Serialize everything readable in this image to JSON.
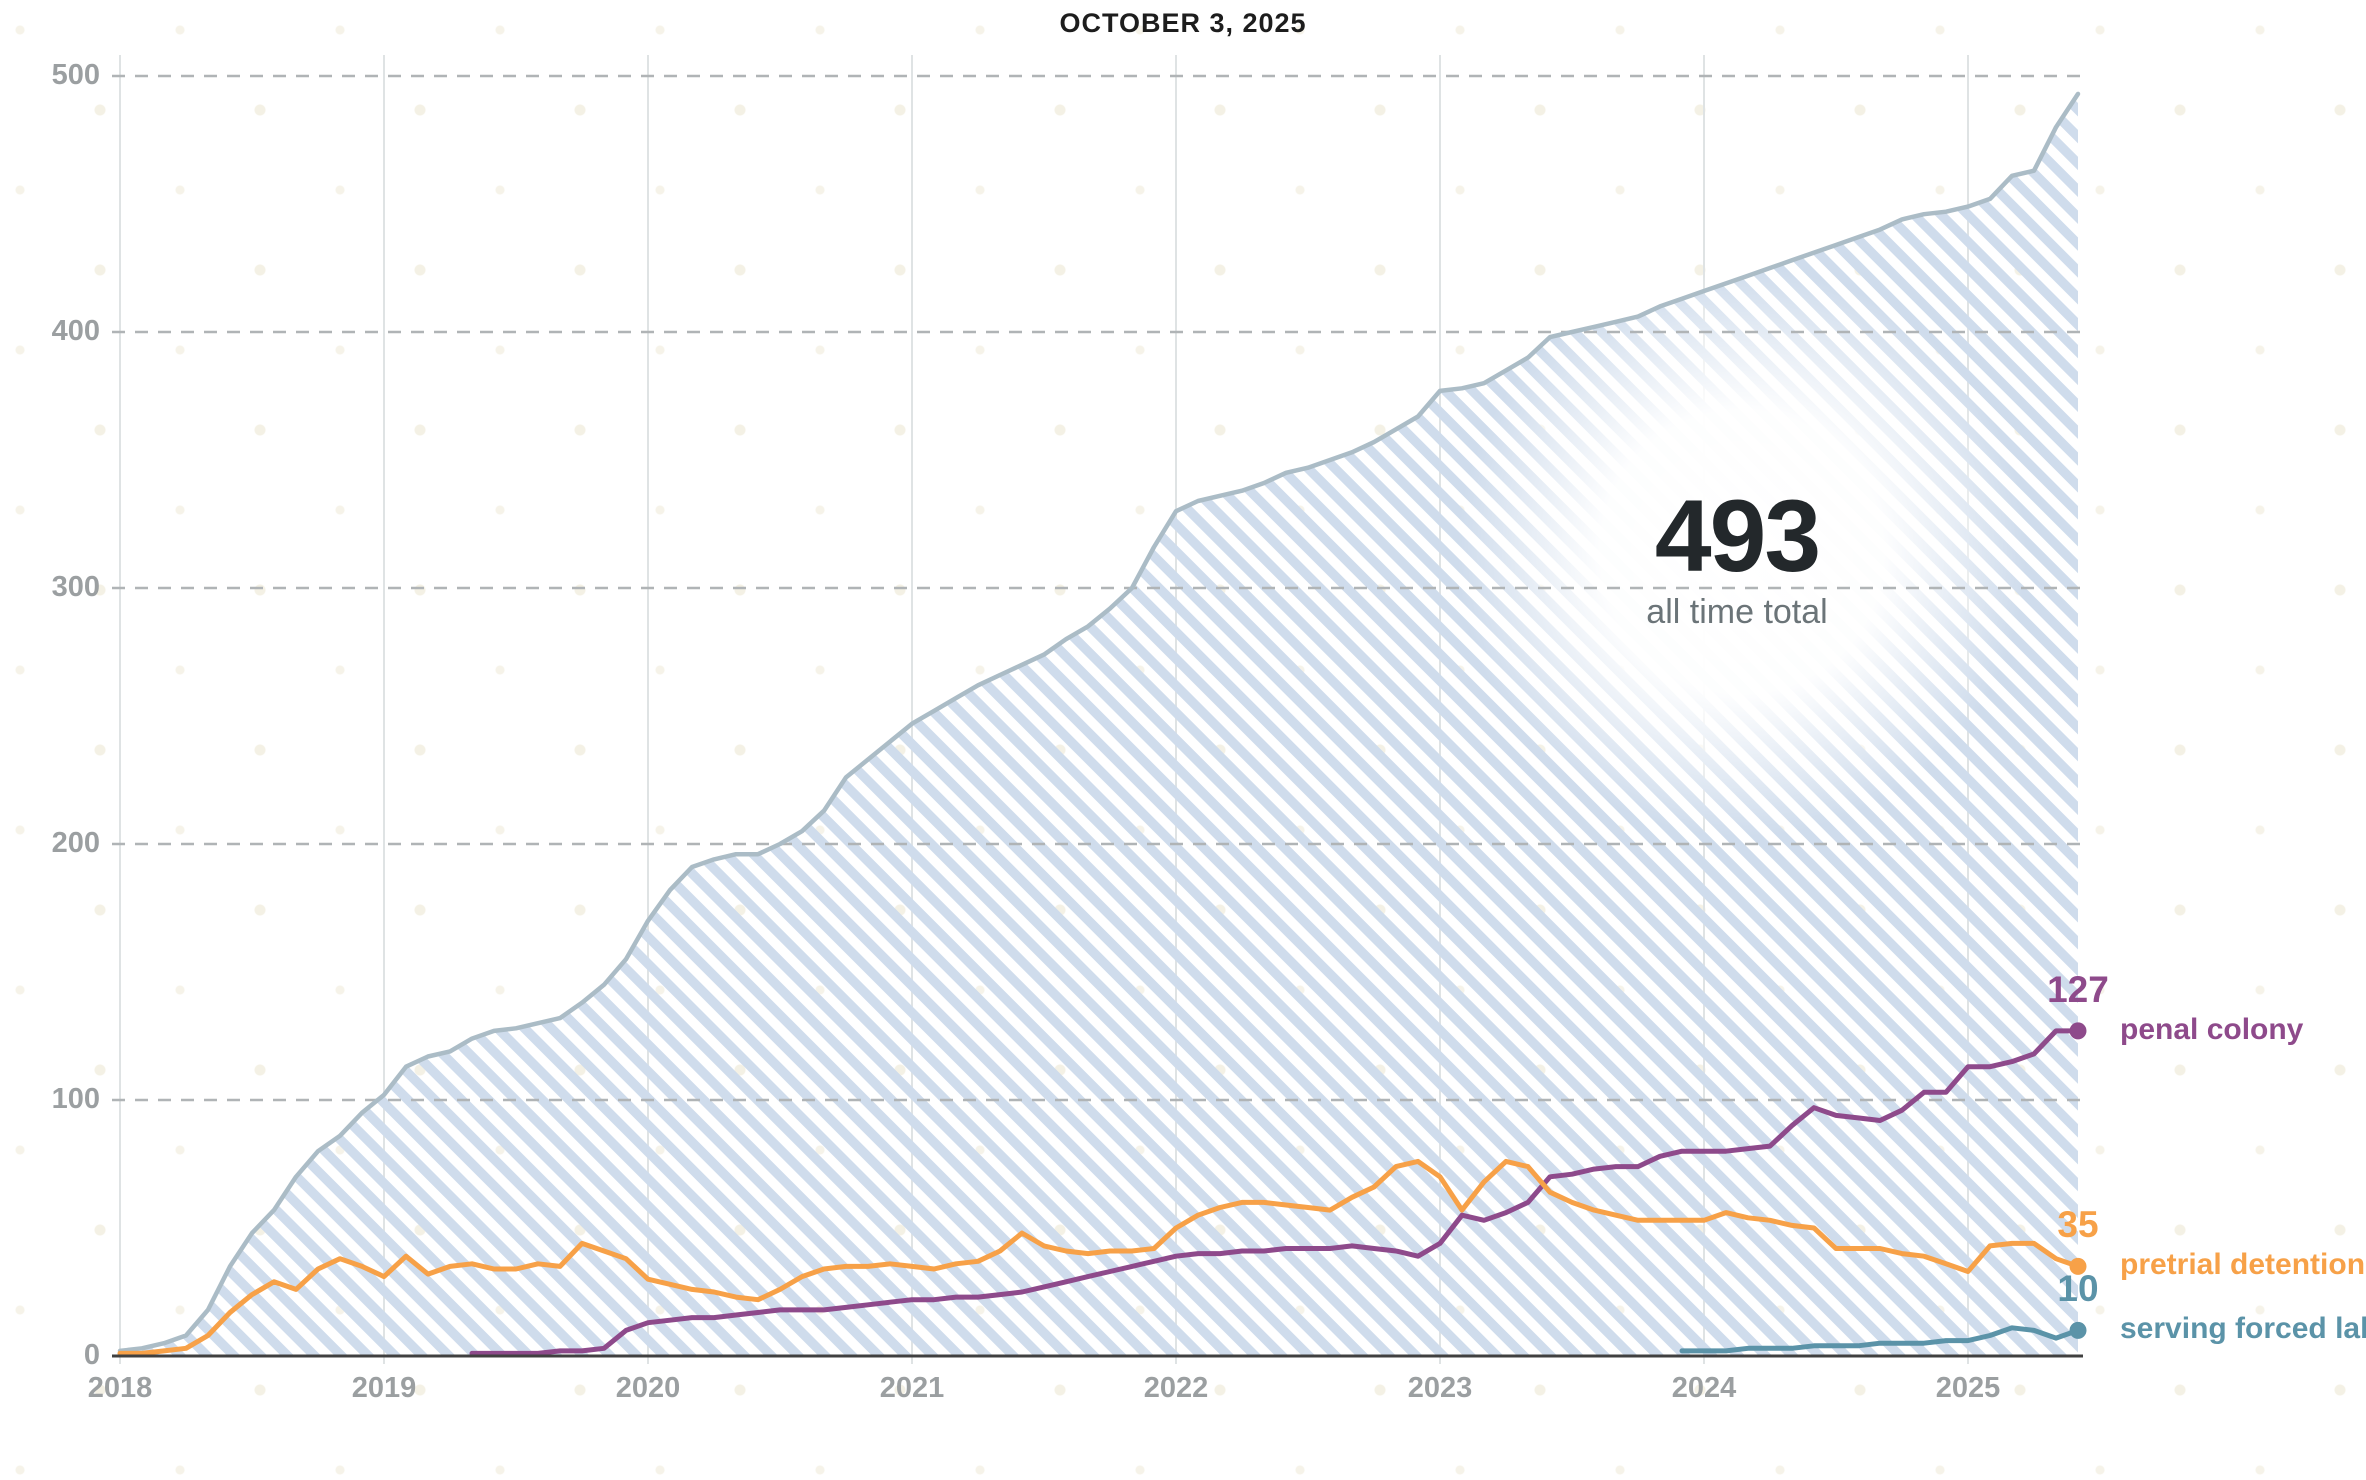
{
  "header": {
    "title": "OCTOBER 3, 2025"
  },
  "summary": {
    "total_value": "493",
    "total_label": "all time total"
  },
  "colors": {
    "area_fill_stripe": "#cfdcec",
    "area_stroke": "#abbcc6",
    "penal_colony": "#8e4a8b",
    "pretrial_detention": "#f7a148",
    "serving_forced_labor": "#5b93a8",
    "gridline_dashed": "#b0b4b6",
    "gridline_vertical": "#dfe3e4",
    "axis_baseline": "#404040",
    "tick_text": "#9b9fa1",
    "title_text": "#1d1d1d",
    "big_number_text": "#23282b",
    "big_label_text": "#6b7478"
  },
  "chart_data": {
    "type": "area",
    "title": "OCTOBER 3, 2025",
    "xlabel": "",
    "ylabel": "",
    "x_axis": {
      "tick_years": [
        2018,
        2019,
        2020,
        2021,
        2022,
        2023,
        2024,
        2025
      ]
    },
    "y_axis": {
      "ticks": [
        0,
        100,
        200,
        300,
        400,
        500
      ],
      "range": [
        0,
        500
      ],
      "grid": "dashed"
    },
    "legend_position": "right-of-line-endpoints",
    "sampling": "monthly, value = decimal year = start + index/12",
    "annotation": {
      "value": "493",
      "label": "all time total"
    },
    "series": [
      {
        "name": "all time total",
        "style": "hatched-area",
        "color": "#abbcc6",
        "end_label": "493",
        "start": 2018.0,
        "values": [
          2,
          3,
          5,
          8,
          18,
          35,
          48,
          57,
          70,
          80,
          86,
          95,
          102,
          113,
          117,
          119,
          124,
          127,
          128,
          130,
          132,
          138,
          145,
          155,
          170,
          182,
          191,
          194,
          196,
          196,
          200,
          205,
          213,
          226,
          233,
          240,
          247,
          252,
          257,
          262,
          266,
          270,
          274,
          280,
          285,
          292,
          300,
          316,
          330,
          334,
          336,
          338,
          341,
          345,
          347,
          350,
          353,
          357,
          362,
          367,
          377,
          378,
          380,
          385,
          390,
          398,
          400,
          402,
          404,
          406,
          410,
          413,
          416,
          419,
          422,
          425,
          428,
          431,
          434,
          437,
          440,
          444,
          446,
          447,
          449,
          452,
          461,
          463,
          480,
          493
        ]
      },
      {
        "name": "penal colony",
        "style": "line",
        "color": "#8e4a8b",
        "end_label": "127",
        "start": 2019.3333,
        "values": [
          1,
          1,
          1,
          1,
          2,
          2,
          3,
          10,
          13,
          14,
          15,
          15,
          16,
          17,
          18,
          18,
          18,
          19,
          20,
          21,
          22,
          22,
          23,
          23,
          24,
          25,
          27,
          29,
          31,
          33,
          35,
          37,
          39,
          40,
          40,
          41,
          41,
          42,
          42,
          42,
          43,
          42,
          41,
          39,
          44,
          55,
          53,
          56,
          60,
          70,
          71,
          73,
          74,
          74,
          78,
          80,
          80,
          80,
          81,
          82,
          90,
          97,
          94,
          93,
          92,
          96,
          103,
          103,
          113,
          113,
          115,
          118,
          127,
          127
        ]
      },
      {
        "name": "pretrial detention",
        "style": "line",
        "color": "#f7a148",
        "end_label": "35",
        "start": 2018.0,
        "values": [
          1,
          1,
          2,
          3,
          8,
          17,
          24,
          29,
          26,
          34,
          38,
          35,
          31,
          39,
          32,
          35,
          36,
          34,
          34,
          36,
          35,
          44,
          41,
          38,
          30,
          28,
          26,
          25,
          23,
          22,
          26,
          31,
          34,
          35,
          35,
          36,
          35,
          34,
          36,
          37,
          41,
          48,
          43,
          41,
          40,
          41,
          41,
          42,
          50,
          55,
          58,
          60,
          60,
          59,
          58,
          57,
          62,
          66,
          74,
          76,
          70,
          57,
          68,
          76,
          74,
          64,
          60,
          57,
          55,
          53,
          53,
          53,
          53,
          56,
          54,
          53,
          51,
          50,
          42,
          42,
          42,
          40,
          39,
          36,
          33,
          43,
          44,
          44,
          38,
          35
        ]
      },
      {
        "name": "serving forced labor",
        "style": "line",
        "color": "#5b93a8",
        "end_label": "10",
        "start": 2023.9167,
        "values": [
          2,
          2,
          2,
          3,
          3,
          3,
          4,
          4,
          4,
          5,
          5,
          5,
          6,
          6,
          8,
          11,
          10,
          7,
          10
        ]
      }
    ]
  }
}
